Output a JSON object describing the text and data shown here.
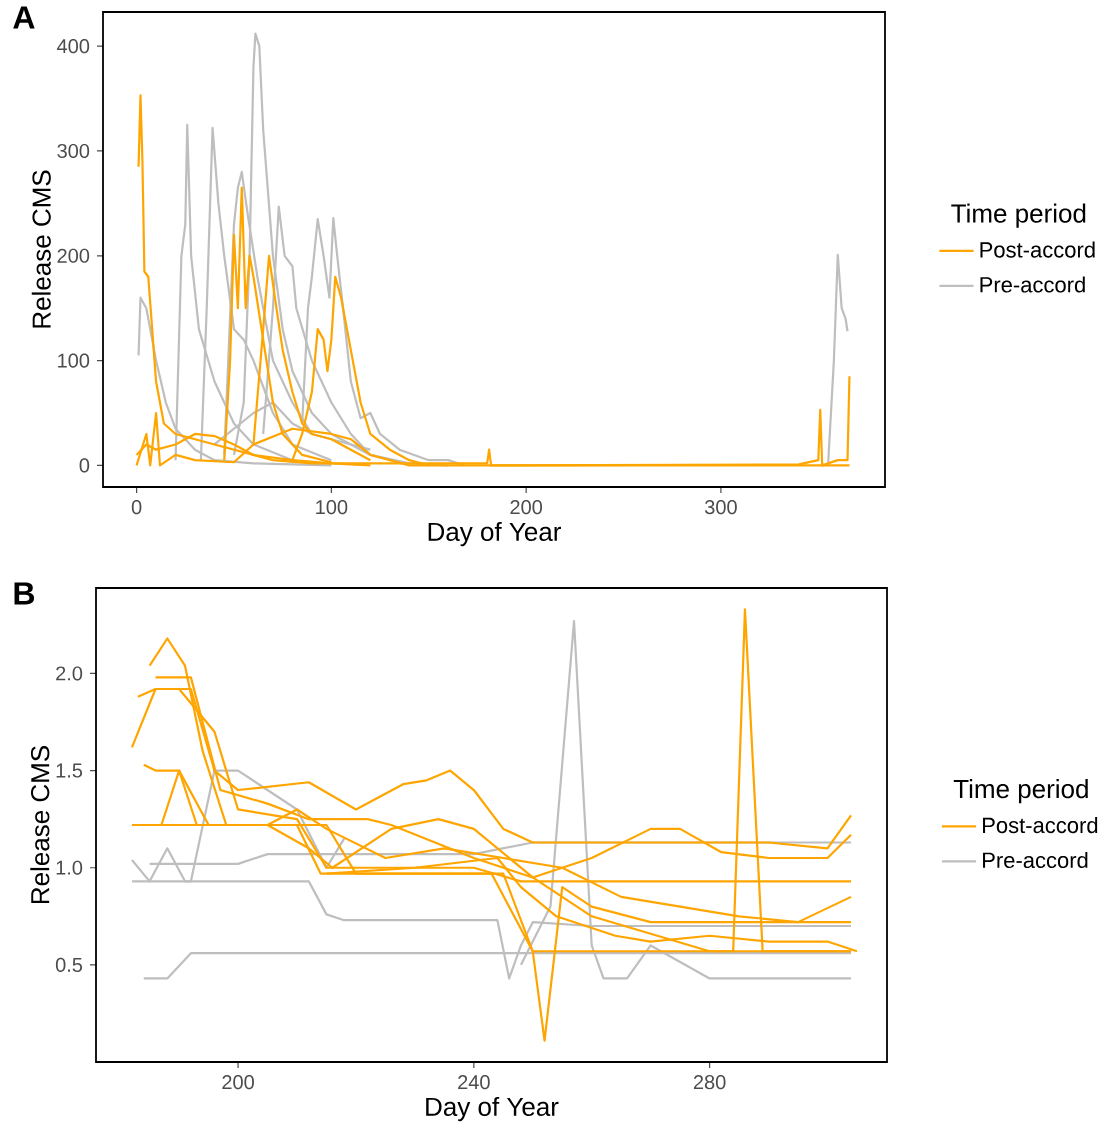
{
  "chart_data": [
    {
      "type": "line",
      "title": "A",
      "xlabel": "Day of Year",
      "ylabel": "Release CMS",
      "legend_title": "Time period",
      "legend": "right",
      "xlim": [
        -17.25,
        384.25
      ],
      "ylim": [
        -20.6,
        432.6
      ],
      "xticks": [
        0,
        100,
        200,
        300
      ],
      "yticks": [
        0,
        100,
        200,
        300,
        400
      ],
      "series": [
        {
          "name": "Post-accord",
          "color": "#ffa500",
          "x": [
            1,
            2,
            3,
            4,
            6,
            8,
            10,
            14,
            20,
            30,
            40,
            60,
            80,
            100,
            120
          ],
          "values": [
            285,
            353,
            290,
            185,
            180,
            130,
            80,
            40,
            30,
            25,
            20,
            10,
            5,
            2,
            0
          ]
        },
        {
          "color": "#ffa500",
          "x": [
            45,
            48,
            50,
            52,
            54,
            56,
            58,
            60,
            65,
            70,
            75,
            85,
            100
          ],
          "values": [
            5,
            100,
            220,
            150,
            265,
            150,
            200,
            180,
            120,
            60,
            30,
            10,
            3
          ]
        },
        {
          "color": "#ffa500",
          "x": [
            60,
            65,
            68,
            71,
            75,
            80,
            85,
            90,
            100,
            110,
            120
          ],
          "values": [
            20,
            130,
            200,
            160,
            110,
            70,
            40,
            30,
            25,
            15,
            5
          ]
        },
        {
          "color": "#ffa500",
          "x": [
            80,
            85,
            90,
            93,
            96,
            98,
            100,
            102,
            105,
            108,
            115,
            120,
            130,
            140,
            150
          ],
          "values": [
            5,
            30,
            70,
            130,
            120,
            90,
            120,
            180,
            160,
            130,
            60,
            30,
            15,
            5,
            0
          ]
        },
        {
          "color": "#ffa500",
          "x": [
            0,
            5,
            10,
            20,
            30,
            40,
            50,
            60,
            70,
            90,
            180,
            181,
            182,
            340,
            350,
            351,
            352,
            360,
            365,
            366
          ],
          "values": [
            10,
            20,
            15,
            20,
            30,
            28,
            20,
            10,
            5,
            2,
            2,
            15,
            0,
            1,
            5,
            53,
            0,
            5,
            5,
            85
          ]
        },
        {
          "color": "#ffa500",
          "x": [
            0,
            5,
            7,
            10,
            12,
            20,
            30,
            50,
            60,
            80,
            100,
            110,
            120,
            140,
            200,
            300,
            366
          ],
          "values": [
            0,
            30,
            0,
            50,
            0,
            10,
            5,
            3,
            20,
            35,
            30,
            25,
            10,
            0,
            0,
            0,
            0
          ]
        },
        {
          "name": "Pre-accord",
          "color": "#bebebe",
          "x": [
            1,
            2,
            5,
            10,
            15,
            20,
            30,
            40,
            60,
            100
          ],
          "values": [
            105,
            160,
            150,
            100,
            60,
            35,
            15,
            5,
            2,
            0
          ]
        },
        {
          "color": "#bebebe",
          "x": [
            50,
            55,
            58,
            60,
            61,
            63,
            65,
            70,
            75,
            80,
            90,
            100,
            120,
            140,
            160
          ],
          "values": [
            10,
            60,
            200,
            380,
            412,
            400,
            320,
            200,
            130,
            90,
            50,
            30,
            10,
            2,
            0
          ]
        },
        {
          "color": "#bebebe",
          "x": [
            20,
            23,
            25,
            26,
            28,
            32,
            40,
            50,
            60,
            80
          ],
          "values": [
            5,
            200,
            230,
            325,
            200,
            130,
            80,
            40,
            20,
            5
          ]
        },
        {
          "color": "#bebebe",
          "x": [
            33,
            36,
            39,
            42,
            45,
            50,
            55,
            60,
            70,
            80,
            100
          ],
          "values": [
            5,
            150,
            322,
            250,
            200,
            130,
            120,
            100,
            50,
            20,
            5
          ]
        },
        {
          "color": "#bebebe",
          "x": [
            45,
            50,
            52,
            54,
            57,
            62,
            70,
            80,
            90
          ],
          "values": [
            10,
            230,
            265,
            280,
            240,
            180,
            100,
            60,
            30
          ]
        },
        {
          "color": "#bebebe",
          "x": [
            65,
            70,
            73,
            76,
            80,
            82,
            90,
            100,
            110,
            120
          ],
          "values": [
            30,
            150,
            247,
            200,
            190,
            150,
            100,
            60,
            30,
            10
          ]
        },
        {
          "color": "#bebebe",
          "x": [
            85,
            88,
            90,
            93,
            96,
            99,
            101,
            103,
            106,
            110,
            115,
            120,
            125,
            135,
            150,
            160,
            168
          ],
          "values": [
            40,
            150,
            180,
            235,
            200,
            160,
            236,
            200,
            150,
            80,
            45,
            50,
            30,
            15,
            5,
            5,
            0
          ]
        },
        {
          "color": "#bebebe",
          "x": [
            40,
            60,
            70,
            80,
            90,
            110,
            120
          ],
          "values": [
            20,
            50,
            60,
            40,
            30,
            20,
            15
          ]
        },
        {
          "color": "#bebebe",
          "x": [
            355,
            358,
            360,
            362,
            364,
            365
          ],
          "values": [
            0,
            100,
            201,
            150,
            140,
            128
          ]
        }
      ]
    },
    {
      "type": "line",
      "title": "B",
      "xlabel": "Day of Year",
      "ylabel": "Release CMS",
      "legend_title": "Time period",
      "legend": "right",
      "xlim": [
        175.9,
        310.1
      ],
      "ylim": [
        0.0,
        2.44
      ],
      "xticks": [
        200,
        240,
        280
      ],
      "yticks": [
        {
          "value": 0.5,
          "label": "0.5"
        },
        {
          "value": 1.0,
          "label": "1.0"
        },
        {
          "value": 1.5,
          "label": "1.5"
        },
        {
          "value": 2.0,
          "label": "2.0"
        }
      ],
      "series": [
        {
          "name": "Post-accord",
          "color": "#ffa500",
          "x": [
            185,
            188,
            191,
            194,
            198,
            215,
            220,
            245,
            250,
            304
          ],
          "values": [
            2.04,
            2.18,
            2.04,
            1.6,
            1.22,
            1.22,
            0.97,
            0.97,
            0.57,
            0.57
          ]
        },
        {
          "color": "#ffa500",
          "x": [
            182,
            195,
            210,
            214,
            240,
            243,
            250,
            252,
            255,
            260,
            270,
            304
          ],
          "values": [
            1.22,
            1.22,
            1.22,
            0.97,
            0.97,
            0.97,
            0.57,
            0.11,
            0.9,
            0.8,
            0.72,
            0.72
          ]
        },
        {
          "color": "#ffa500",
          "x": [
            186,
            192,
            197,
            205,
            212,
            222,
            226,
            240,
            250,
            260,
            280,
            284,
            286,
            289,
            304
          ],
          "values": [
            1.98,
            1.98,
            1.4,
            1.33,
            1.25,
            1.25,
            1.22,
            1.05,
            0.95,
            0.75,
            0.57,
            0.57,
            2.33,
            0.57,
            0.57
          ]
        },
        {
          "color": "#ffa500",
          "x": [
            182,
            186,
            190,
            196,
            200,
            210,
            215,
            230,
            240,
            248,
            260,
            280,
            304
          ],
          "values": [
            1.62,
            1.92,
            1.92,
            1.7,
            1.3,
            1.25,
            1.0,
            1.0,
            1.0,
            0.93,
            0.93,
            0.93,
            0.93
          ]
        },
        {
          "color": "#ffa500",
          "x": [
            183,
            186,
            192,
            196,
            200,
            212,
            220,
            228,
            232,
            236,
            240,
            245,
            250,
            260,
            280,
            290,
            300,
            304
          ],
          "values": [
            1.88,
            1.92,
            1.92,
            1.5,
            1.4,
            1.44,
            1.3,
            1.43,
            1.45,
            1.5,
            1.4,
            1.2,
            1.13,
            1.13,
            1.13,
            1.13,
            1.1,
            1.27
          ]
        },
        {
          "color": "#ffa500",
          "x": [
            184,
            186,
            190,
            195,
            205,
            210,
            215,
            225,
            235,
            245,
            255,
            265,
            275,
            285,
            295,
            304
          ],
          "values": [
            1.53,
            1.5,
            1.5,
            1.22,
            1.22,
            1.3,
            1.2,
            1.05,
            1.1,
            1.05,
            1.0,
            0.85,
            0.8,
            0.75,
            0.72,
            0.85
          ]
        },
        {
          "color": "#ffa500",
          "x": [
            182,
            187,
            190,
            193,
            205,
            212,
            216,
            226,
            234,
            240,
            250,
            260,
            270,
            275,
            282,
            290,
            300,
            304
          ],
          "values": [
            1.22,
            1.22,
            1.5,
            1.22,
            1.22,
            1.1,
            1.0,
            1.2,
            1.25,
            1.2,
            0.95,
            1.05,
            1.2,
            1.2,
            1.08,
            1.05,
            1.05,
            1.17
          ]
        },
        {
          "color": "#ffa500",
          "x": [
            215,
            230,
            244,
            248,
            254,
            264,
            270,
            280,
            290,
            300,
            305
          ],
          "values": [
            0.97,
            1.0,
            1.05,
            0.9,
            0.75,
            0.65,
            0.62,
            0.65,
            0.62,
            0.62,
            0.57
          ]
        },
        {
          "name": "Pre-accord",
          "color": "#bebebe",
          "x": [
            182,
            212,
            215,
            218,
            240,
            244,
            246,
            248,
            250,
            260,
            280,
            300,
            304
          ],
          "values": [
            0.93,
            0.93,
            0.76,
            0.73,
            0.73,
            0.73,
            0.43,
            0.6,
            0.72,
            0.7,
            0.7,
            0.7,
            0.7
          ]
        },
        {
          "color": "#bebebe",
          "x": [
            184,
            188,
            192,
            240,
            304
          ],
          "values": [
            0.43,
            0.43,
            0.56,
            0.56,
            0.56
          ]
        },
        {
          "color": "#bebebe",
          "x": [
            182,
            185,
            188,
            191,
            192,
            196,
            200,
            210,
            215,
            218
          ],
          "values": [
            1.04,
            0.93,
            1.1,
            0.93,
            0.93,
            1.5,
            1.5,
            1.3,
            1.0,
            1.15
          ]
        },
        {
          "color": "#bebebe",
          "x": [
            248,
            253,
            257,
            260,
            262,
            266,
            270,
            280,
            304
          ],
          "values": [
            0.5,
            0.8,
            2.27,
            0.6,
            0.43,
            0.43,
            0.6,
            0.43,
            0.43
          ]
        },
        {
          "color": "#bebebe",
          "x": [
            185,
            200,
            205,
            220,
            240,
            250,
            304
          ],
          "values": [
            1.02,
            1.02,
            1.07,
            1.07,
            1.07,
            1.13,
            1.13
          ]
        }
      ]
    }
  ]
}
